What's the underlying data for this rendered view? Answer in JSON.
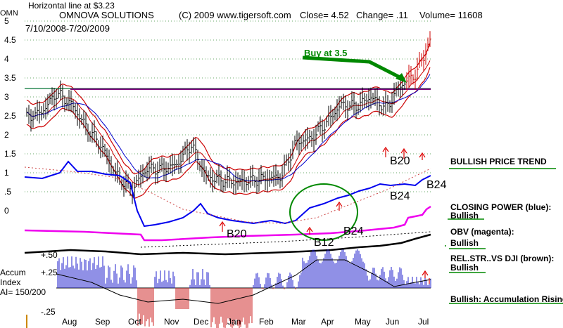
{
  "header": {
    "symbol": "OMN",
    "horizontal_line_label": "Horizontal line at $3.23",
    "company": "OMNOVA SOLUTIONS",
    "copyright": "(C) 2009 www.tigersoft.com",
    "close": "Close=  4.52",
    "change": "Change= .11",
    "volume": "Volume= 11608",
    "date_range": "7/10/2008-7/20/2009"
  },
  "chart_data": {
    "type": "line",
    "title": "OMNOVA SOLUTIONS",
    "x_tick_labels": [
      "Aug",
      "Sep",
      "Oct",
      "Nov",
      "Dec",
      "Jan",
      "Feb",
      "Mar",
      "Apr",
      "May",
      "Jun",
      "Jul"
    ],
    "y_tick_labels": [
      "5",
      "4.5",
      "4",
      "3.5",
      "3",
      "2.5",
      "2",
      "1.5",
      "1",
      ".5",
      "0"
    ],
    "ylim": [
      0,
      5
    ],
    "horizontal_line": 3.23,
    "grid": "horizontal dotted",
    "close": 4.52,
    "price_path": [
      {
        "m": "Jul",
        "v": 2.45
      },
      {
        "m": "Aug",
        "v": 2.6
      },
      {
        "m": "Aug",
        "v": 3.1
      },
      {
        "m": "Sep",
        "v": 2.8
      },
      {
        "m": "Sep",
        "v": 2.2
      },
      {
        "m": "Oct",
        "v": 1.7
      },
      {
        "m": "Oct",
        "v": 0.95
      },
      {
        "m": "Oct",
        "v": 0.55
      },
      {
        "m": "Nov",
        "v": 1.1
      },
      {
        "m": "Nov",
        "v": 1.1
      },
      {
        "m": "Dec",
        "v": 1.2
      },
      {
        "m": "Dec",
        "v": 1.75
      },
      {
        "m": "Dec",
        "v": 0.9
      },
      {
        "m": "Jan",
        "v": 0.8
      },
      {
        "m": "Jan",
        "v": 0.75
      },
      {
        "m": "Feb",
        "v": 0.8
      },
      {
        "m": "Feb",
        "v": 0.85
      },
      {
        "m": "Mar",
        "v": 0.9
      },
      {
        "m": "Mar",
        "v": 1.8
      },
      {
        "m": "Apr",
        "v": 1.9
      },
      {
        "m": "Apr",
        "v": 2.3
      },
      {
        "m": "May",
        "v": 2.8
      },
      {
        "m": "May",
        "v": 2.75
      },
      {
        "m": "Jun",
        "v": 3.0
      },
      {
        "m": "Jun",
        "v": 2.7
      },
      {
        "m": "Jun",
        "v": 3.3
      },
      {
        "m": "Jul",
        "v": 3.6
      },
      {
        "m": "Jul",
        "v": 4.5
      }
    ],
    "indicator_labels": {
      "accum": "Accum",
      "index": "Index",
      "ai": "AI= 150/200",
      "plus50": "+.50",
      "plus25": "+.25",
      "minus25": "-.25"
    },
    "annotations": {
      "buy": "Buy at 3.5",
      "b20_price": "B20",
      "b24_mid": "B24",
      "b24_right": "B24",
      "b20_low": "B20",
      "b24_low": "B24",
      "b12": "B12"
    },
    "legend": [
      {
        "text": "BULLISH PRICE TREND",
        "color": "#000000"
      },
      {
        "text": "CLOSING POWER (blue):",
        "sub": "Bullish",
        "color": "#0000ff"
      },
      {
        "text": "OBV (magenta):",
        "sub": "Bullish",
        "color": "#ff00ff"
      },
      {
        "text": "REL.STR..VS DJI (brown):",
        "sub": "Bullish",
        "color": "#8b4513"
      },
      {
        "text": "Bullish: Accumulation Rising",
        "color": "#000000"
      }
    ]
  }
}
